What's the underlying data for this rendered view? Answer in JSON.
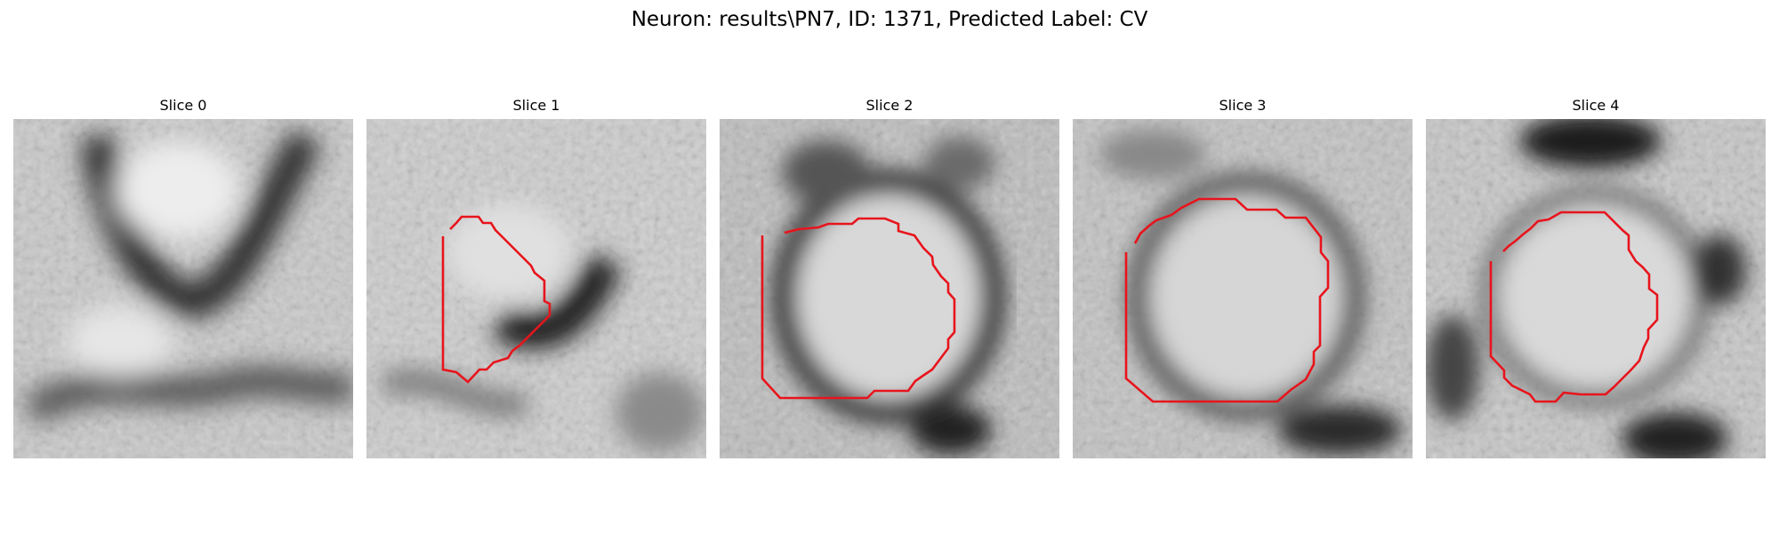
{
  "figure": {
    "title": "Neuron: results\\PN7, ID: 1371, Predicted Label: CV",
    "contour_color": "#e8141c"
  },
  "panels": [
    {
      "title": "Slice 0",
      "has_contour": false
    },
    {
      "title": "Slice 1",
      "has_contour": true
    },
    {
      "title": "Slice 2",
      "has_contour": true
    },
    {
      "title": "Slice 3",
      "has_contour": true
    },
    {
      "title": "Slice 4",
      "has_contour": true
    }
  ]
}
